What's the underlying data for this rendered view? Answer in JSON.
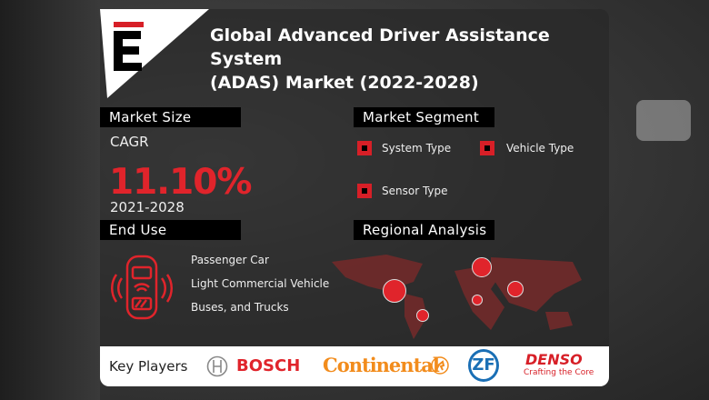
{
  "header": {
    "title_line1": "Global Advanced Driver Assistance System",
    "title_line2": "(ADAS) Market (2022-2028)",
    "logo_letter": "E"
  },
  "market_size": {
    "heading": "Market Size",
    "label": "CAGR",
    "value": "11.10%",
    "period": "2021-2028"
  },
  "market_segment": {
    "heading": "Market Segment",
    "items": [
      "System Type",
      "Vehicle Type",
      "Sensor Type"
    ]
  },
  "end_use": {
    "heading": "End Use",
    "icon": "connected-car-icon",
    "items": [
      "Passenger Car",
      "Light Commercial Vehicle",
      "Buses, and Trucks"
    ]
  },
  "regional": {
    "heading": "Regional Analysis",
    "icon": "world-map-icon"
  },
  "key_players": {
    "label": "Key Players",
    "players": [
      "BOSCH",
      "Continental",
      "ZF",
      "DENSO"
    ],
    "denso_tagline": "Crafting the Core"
  },
  "colors": {
    "accent": "#e0242b",
    "header_bg": "#000000",
    "continental": "#f28c1c",
    "zf": "#1a6fb5"
  }
}
